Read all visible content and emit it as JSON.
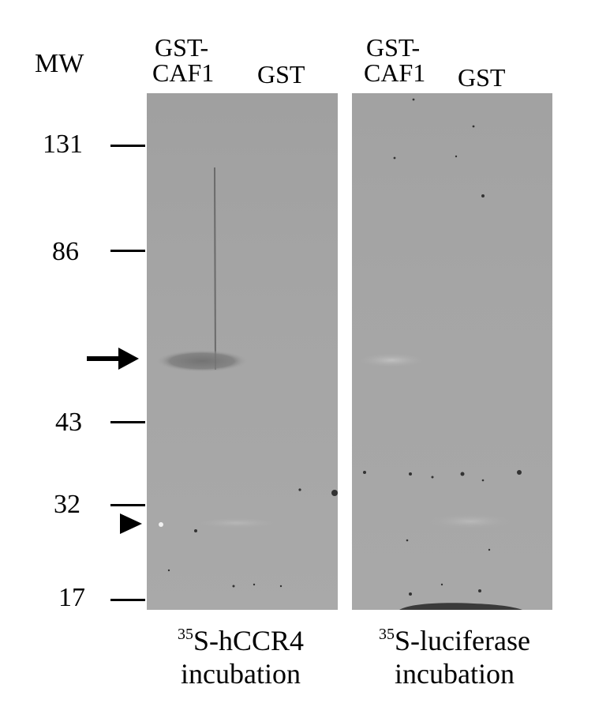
{
  "mw_header": "MW",
  "mw_markers": [
    "131",
    "86",
    "43",
    "32",
    "17"
  ],
  "panels": [
    {
      "lanes": [
        {
          "label_line1": "GST-",
          "label_line2": "CAF1"
        },
        {
          "label_line1": "",
          "label_line2": "GST"
        }
      ],
      "caption_sup": "35",
      "caption_main": "S-hCCR4",
      "caption_line2": "incubation"
    },
    {
      "lanes": [
        {
          "label_line1": "GST-",
          "label_line2": "CAF1"
        },
        {
          "label_line1": "",
          "label_line2": "GST"
        }
      ],
      "caption_sup": "35",
      "caption_main": "S-luciferase",
      "caption_line2": "incubation"
    }
  ],
  "colors": {
    "background": "#ffffff",
    "membrane": "#a6a6a6",
    "band": "#7a7a7a",
    "ink": "#000000"
  },
  "markers_icons": [
    "arrow-icon",
    "arrowhead-icon"
  ]
}
